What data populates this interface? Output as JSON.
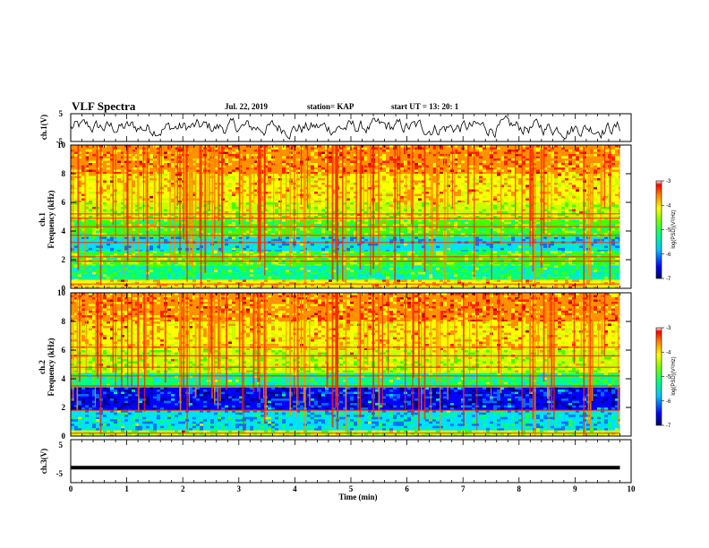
{
  "header": {
    "title": "VLF Spectra",
    "date": "Jul. 22, 2019",
    "station": "station= KAP",
    "start": "start UT = 13: 20: 1"
  },
  "colors": {
    "palette": [
      "#000080",
      "#0000ff",
      "#0070ff",
      "#00e0ff",
      "#00ff80",
      "#40ff00",
      "#c8ff00",
      "#ffff00",
      "#ff9000",
      "#ff2000",
      "#c00000"
    ]
  },
  "chart_data": [
    {
      "type": "line",
      "panel": "ch1-waveform",
      "ylabel": "ch.1(V)",
      "ylim": [
        -5,
        5
      ],
      "yticks": [
        "5",
        "-5"
      ],
      "xlim": [
        0,
        10
      ],
      "note_series": "noisy waveform fluctuating roughly between -3 and 3 V"
    },
    {
      "type": "heatmap",
      "panel": "ch1-spectrogram",
      "ylabel_line1": "ch.1",
      "ylabel_line2": "Frequency (kHz)",
      "ylim": [
        0,
        10
      ],
      "yticks": [
        "0",
        "2",
        "4",
        "6",
        "8",
        "10"
      ],
      "xlim": [
        0,
        10
      ],
      "colorbar": {
        "label": "log(PSD)(V²/Hz)",
        "min": -7,
        "max": -3,
        "ticks": [
          "-3",
          "-4",
          "-5",
          "-6",
          "-7"
        ]
      },
      "bands_khz": [
        {
          "from": 0,
          "to": 0.6,
          "level": 7
        },
        {
          "from": 0.6,
          "to": 1.6,
          "level": 4
        },
        {
          "from": 1.6,
          "to": 2.6,
          "level": 5
        },
        {
          "from": 2.6,
          "to": 3.6,
          "level": 3
        },
        {
          "from": 3.6,
          "to": 4.8,
          "level": 5
        },
        {
          "from": 4.8,
          "to": 6.0,
          "level": 6
        },
        {
          "from": 6.0,
          "to": 8.0,
          "level": 7
        },
        {
          "from": 8.0,
          "to": 10.0,
          "level": 8
        }
      ],
      "lines_khz": [
        0.3,
        1.9,
        2.2,
        3.2,
        3.7,
        4.3,
        4.9,
        5.2
      ]
    },
    {
      "type": "heatmap",
      "panel": "ch2-spectrogram",
      "ylabel_line1": "ch.2",
      "ylabel_line2": "Frequency (kHz)",
      "ylim": [
        0,
        10
      ],
      "yticks": [
        "0",
        "2",
        "4",
        "6",
        "8",
        "10"
      ],
      "xlim": [
        0,
        10
      ],
      "colorbar": {
        "label": "log(PSD)(V²/Hz)",
        "min": -7,
        "max": -3,
        "ticks": [
          "-3",
          "-4",
          "-5",
          "-6",
          "-7"
        ]
      },
      "bands_khz": [
        {
          "from": 0,
          "to": 0.4,
          "level": 6
        },
        {
          "from": 0.4,
          "to": 1.8,
          "level": 3
        },
        {
          "from": 1.8,
          "to": 3.4,
          "level": 1
        },
        {
          "from": 3.4,
          "to": 4.4,
          "level": 4
        },
        {
          "from": 4.4,
          "to": 6.0,
          "level": 6
        },
        {
          "from": 6.0,
          "to": 8.0,
          "level": 7
        },
        {
          "from": 8.0,
          "to": 10.0,
          "level": 8
        }
      ],
      "lines_khz": [
        0.2,
        1.8,
        3.5,
        4.2,
        4.8,
        5.6,
        6.2
      ]
    },
    {
      "type": "line",
      "panel": "ch3-waveform",
      "ylabel": "ch.3(V)",
      "ylim": [
        -5,
        5
      ],
      "yticks": [
        "5",
        "-5"
      ],
      "xlim": [
        0,
        10
      ],
      "series": [
        {
          "x": [
            0,
            9.8
          ],
          "y": [
            -1.5,
            -1.5
          ]
        }
      ]
    }
  ],
  "xaxis": {
    "label": "Time (min)",
    "ticks": [
      "0",
      "1",
      "2",
      "3",
      "4",
      "5",
      "6",
      "7",
      "8",
      "9",
      "10"
    ]
  }
}
